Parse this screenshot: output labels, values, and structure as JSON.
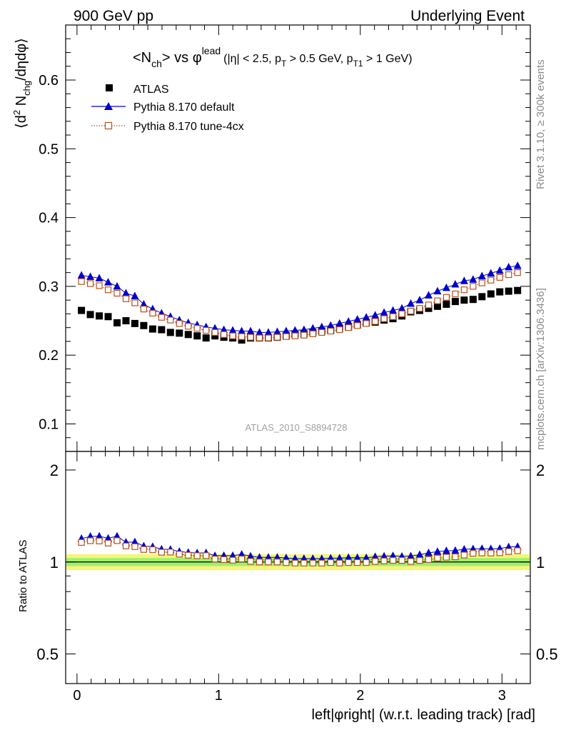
{
  "header": {
    "left": "900 GeV pp",
    "right": "Underlying Event"
  },
  "side_labels": {
    "right_top": "Rivet 3.1.10, ≥ 300k events",
    "right_bottom": "mcplots.cern.ch [arXiv:1306.3436]"
  },
  "watermark": "ATLAS_2010_S8894728",
  "title": {
    "n": "<N",
    "n_sub": "ch",
    "vs": "> vs φ",
    "lead_sup": "lead",
    "cuts_a": "(|η| < 2.5, p",
    "cuts_b": "T",
    "cuts_c": " > 0.5 GeV, p",
    "cuts_d": "T1",
    "cuts_e": " > 1 GeV)"
  },
  "axes": {
    "ylabel": {
      "a": "⟨d",
      "b": "2",
      "c": " N",
      "d": "chg",
      "e": "/dηdφ⟩"
    },
    "ratio_ylabel": "Ratio to ATLAS",
    "xlabel": "left|φright| (w.r.t. leading track) [rad]"
  },
  "legend": [
    {
      "label": "ATLAS",
      "color": "#000000",
      "marker": "filled-square"
    },
    {
      "label": "Pythia 8.170 default",
      "color": "#0000cc",
      "marker": "filled-triangle"
    },
    {
      "label": "Pythia 8.170 tune-4cx",
      "color": "#b5521d",
      "marker": "open-square-dotted"
    }
  ],
  "chart_data": {
    "type": "scatter",
    "x": [
      0.0314,
      0.0942,
      0.1571,
      0.2199,
      0.2827,
      0.3456,
      0.4084,
      0.4712,
      0.5341,
      0.5969,
      0.6597,
      0.7226,
      0.7854,
      0.8482,
      0.9111,
      0.9739,
      1.0367,
      1.0996,
      1.1624,
      1.2252,
      1.2881,
      1.3509,
      1.4137,
      1.4765,
      1.5394,
      1.6022,
      1.665,
      1.7279,
      1.7907,
      1.8535,
      1.9164,
      1.9792,
      2.042,
      2.1049,
      2.1677,
      2.2305,
      2.2934,
      2.3562,
      2.419,
      2.4819,
      2.5447,
      2.6075,
      2.6704,
      2.7332,
      2.796,
      2.8588,
      2.9217,
      2.9845,
      3.0473,
      3.1102
    ],
    "xlim": [
      -0.08,
      3.2
    ],
    "series": [
      {
        "name": "ATLAS",
        "color": "#000000",
        "values": [
          0.265,
          0.259,
          0.257,
          0.256,
          0.247,
          0.25,
          0.246,
          0.243,
          0.238,
          0.237,
          0.233,
          0.232,
          0.23,
          0.228,
          0.225,
          0.228,
          0.226,
          0.225,
          0.222,
          0.225,
          0.225,
          0.225,
          0.226,
          0.228,
          0.23,
          0.231,
          0.233,
          0.235,
          0.236,
          0.239,
          0.241,
          0.244,
          0.247,
          0.248,
          0.251,
          0.253,
          0.257,
          0.263,
          0.265,
          0.268,
          0.271,
          0.274,
          0.278,
          0.28,
          0.281,
          0.285,
          0.289,
          0.292,
          0.293,
          0.294
        ]
      },
      {
        "name": "Pythia 8.170 default",
        "color": "#0000cc",
        "values": [
          0.316,
          0.314,
          0.312,
          0.306,
          0.3,
          0.29,
          0.286,
          0.274,
          0.267,
          0.261,
          0.256,
          0.251,
          0.247,
          0.244,
          0.241,
          0.239,
          0.237,
          0.236,
          0.235,
          0.235,
          0.233,
          0.233,
          0.234,
          0.235,
          0.236,
          0.237,
          0.239,
          0.241,
          0.243,
          0.246,
          0.249,
          0.252,
          0.255,
          0.258,
          0.262,
          0.265,
          0.268,
          0.275,
          0.28,
          0.287,
          0.293,
          0.298,
          0.303,
          0.308,
          0.31,
          0.315,
          0.319,
          0.323,
          0.328,
          0.33
        ]
      },
      {
        "name": "Pythia 8.170 tune-4cx",
        "color": "#b5521d",
        "values": [
          0.307,
          0.304,
          0.301,
          0.295,
          0.29,
          0.282,
          0.276,
          0.267,
          0.261,
          0.255,
          0.251,
          0.246,
          0.242,
          0.239,
          0.236,
          0.233,
          0.23,
          0.228,
          0.227,
          0.226,
          0.225,
          0.225,
          0.226,
          0.227,
          0.228,
          0.229,
          0.231,
          0.233,
          0.235,
          0.237,
          0.24,
          0.243,
          0.246,
          0.249,
          0.253,
          0.256,
          0.26,
          0.264,
          0.268,
          0.273,
          0.279,
          0.284,
          0.289,
          0.295,
          0.3,
          0.305,
          0.309,
          0.313,
          0.317,
          0.32
        ]
      }
    ],
    "main_ylim": [
      0.06,
      0.68
    ],
    "main_yticks": [
      "0.1",
      "0.2",
      "0.3",
      "0.4",
      "0.5",
      "0.6"
    ],
    "ratio_ylim": [
      0.4,
      2.3
    ],
    "ratio_yticks": [
      "0.5",
      "1",
      "2"
    ],
    "xticks": [
      "0",
      "1",
      "2",
      "3"
    ],
    "ratio_band": {
      "inner_color": "#9ef06e",
      "outer_color": "#f5f57a",
      "inner_halfwidth": 0.03,
      "outer_halfwidth": 0.06
    }
  }
}
